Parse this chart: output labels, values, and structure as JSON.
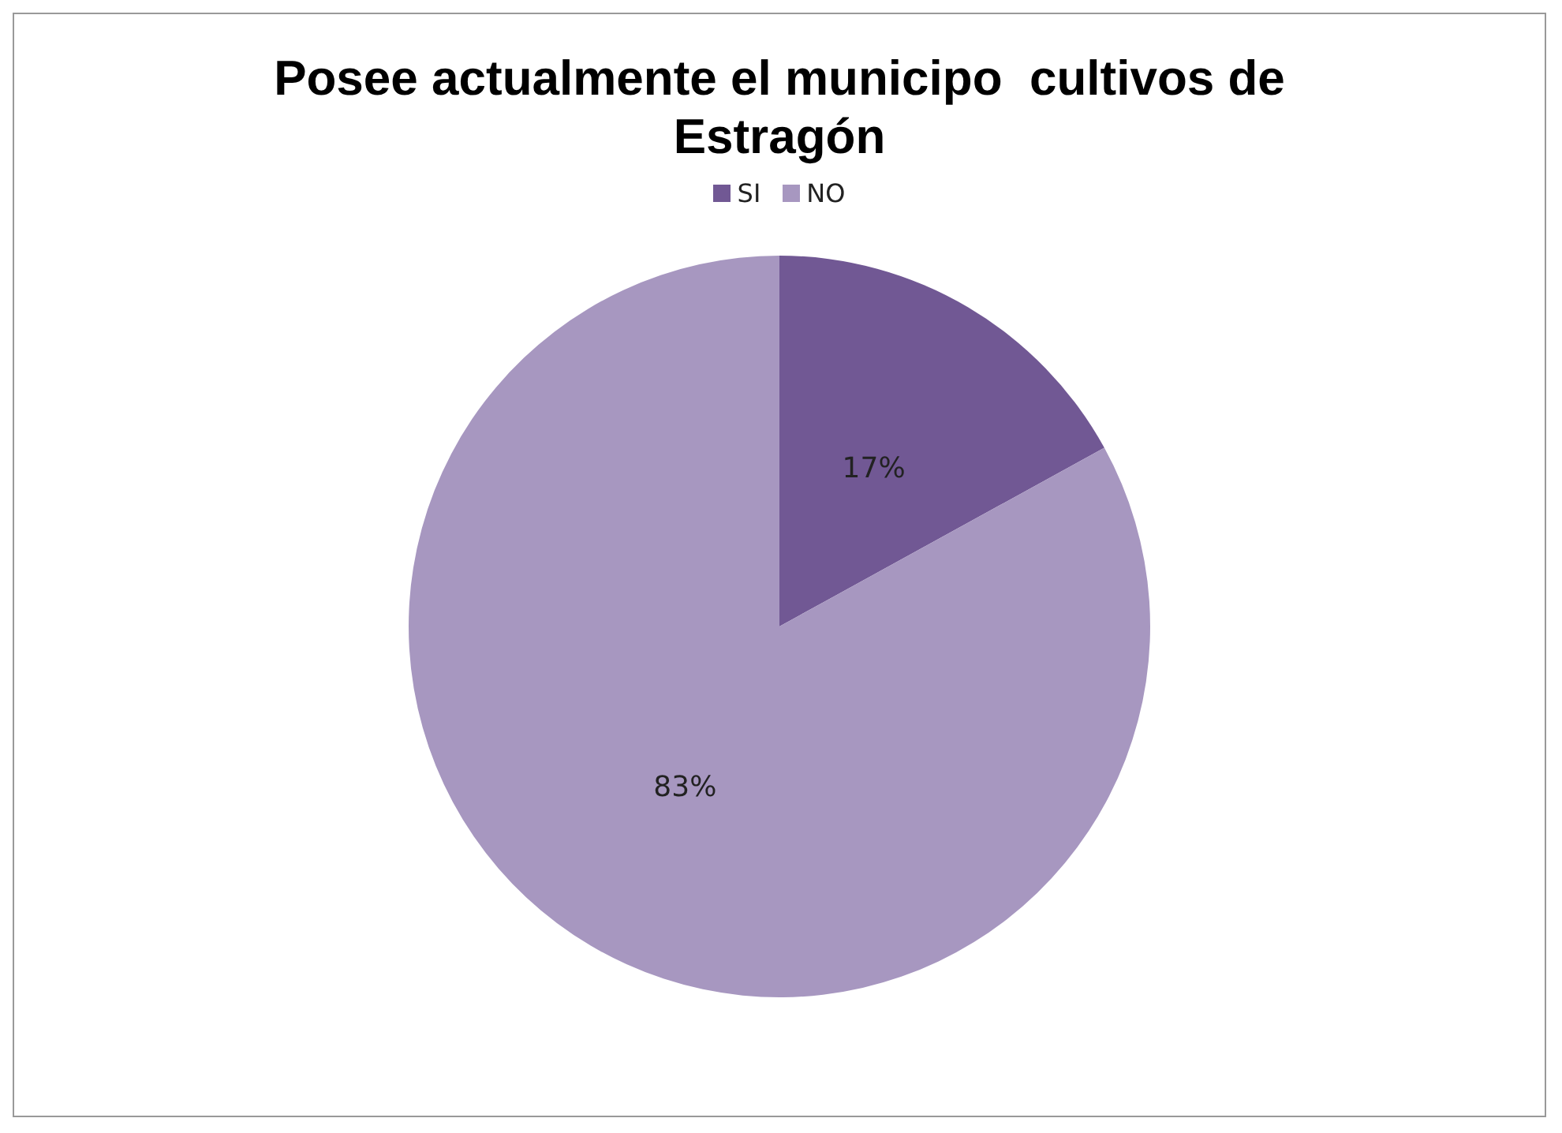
{
  "chart_data": {
    "type": "pie",
    "title": "Posee actualmente el municipo  cultivos de Estragón",
    "categories": [
      "SI",
      "NO"
    ],
    "values": [
      17,
      83
    ],
    "colors": [
      "#715894",
      "#a797c0"
    ],
    "value_labels": [
      "17%",
      "83%"
    ],
    "legend": "top"
  }
}
